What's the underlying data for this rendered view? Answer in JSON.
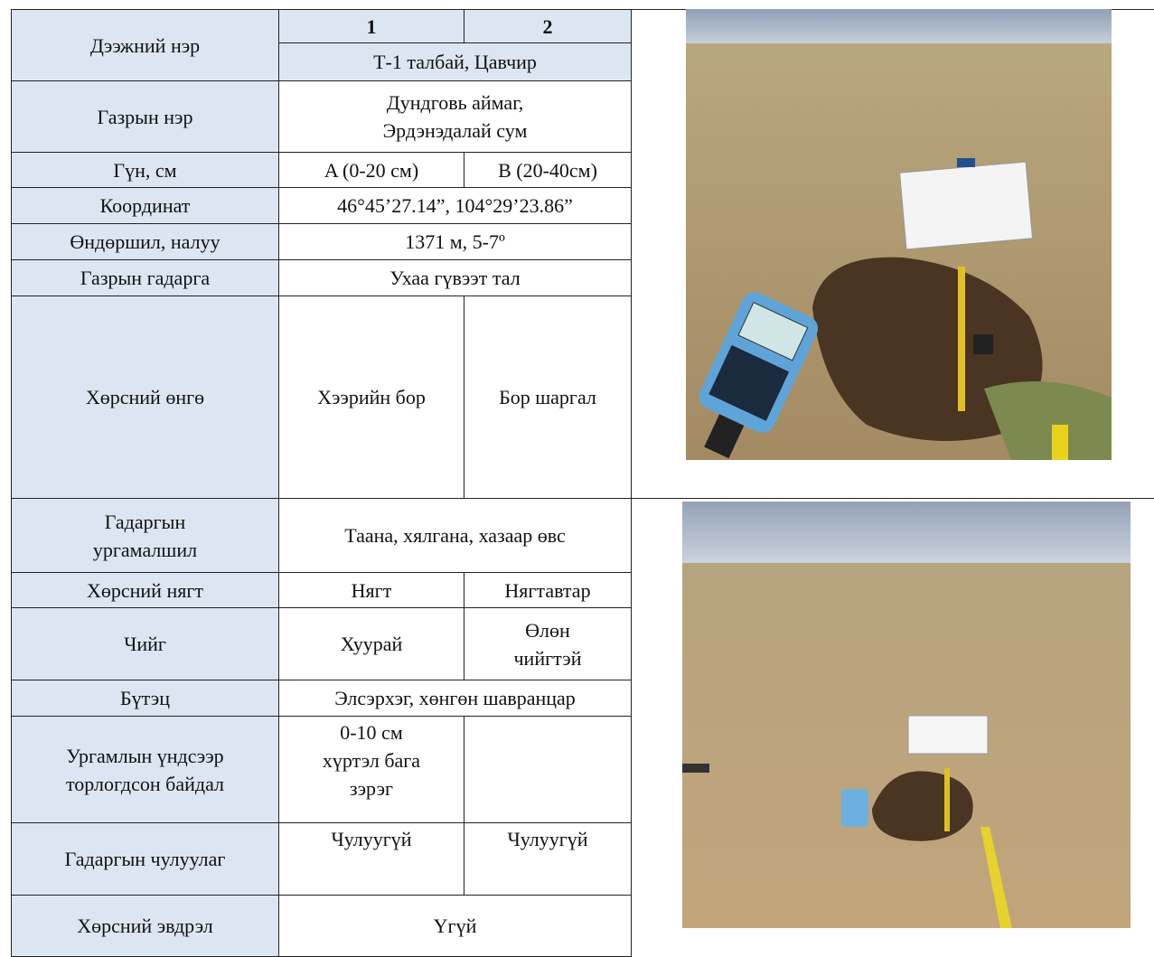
{
  "table": {
    "rows": [
      [
        "Дээжний нэр",
        "1",
        "2"
      ],
      [
        "Т-1 талбай, Цавчир"
      ],
      [
        "Газрын нэр",
        [
          "Дундговь аймаг,",
          "Эрдэнэдалай сум"
        ]
      ],
      [
        "Гүн, см",
        "A (0-20 см)",
        "B (20-40см)"
      ],
      [
        "Координат",
        "46°45’27.14”, 104°29’23.86”"
      ],
      [
        "Өндөршил, налуу",
        "1371 м, 5-7º"
      ],
      [
        "Газрын гадарга",
        "Ухаа гүвээт тал"
      ],
      [
        "Хөрсний өнгө",
        "Хээрийн бор",
        "Бор шаргал"
      ],
      [
        [
          "Гадаргын",
          "ургамалшил"
        ],
        "Таана, хялгана, хазаар өвс"
      ],
      [
        "Хөрсний нягт",
        "Нягт",
        "Нягтавтар"
      ],
      [
        "Чийг",
        "Хуурай",
        [
          "Өлөн",
          "чийгтэй"
        ]
      ],
      [
        "Бүтэц",
        "Элсэрхэг, хөнгөн шавранцар"
      ],
      [
        [
          "Ургамлын үндсээр",
          "торлогдсон байдал"
        ],
        [
          "0-10 см",
          "хүртэл бага",
          "зэрэг"
        ]
      ],
      [
        "Гадаргын чулуулаг",
        "Чулуугүй",
        "Чулуугүй"
      ],
      [
        "Хөрсний эвдрэл",
        "Үгүй"
      ]
    ]
  }
}
